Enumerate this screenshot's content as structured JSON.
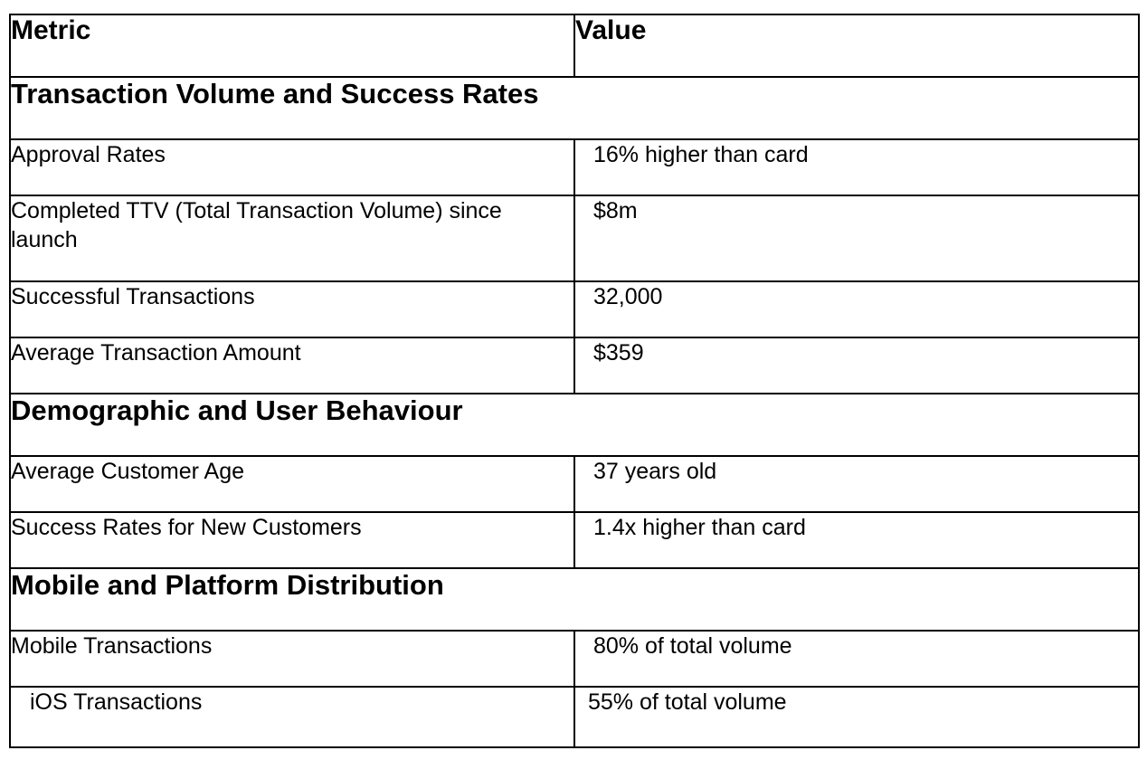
{
  "table": {
    "headers": {
      "metric": "Metric",
      "value": "Value"
    },
    "sections": [
      {
        "title": "Transaction Volume and Success Rates",
        "rows": [
          {
            "metric": "Approval Rates",
            "value": "16% higher than card"
          },
          {
            "metric": "Completed TTV (Total Transaction Volume) since launch",
            "value": "$8m"
          },
          {
            "metric": "Successful Transactions",
            "value": "32,000"
          },
          {
            "metric": "Average Transaction Amount",
            "value": "$359"
          }
        ]
      },
      {
        "title": "Demographic and User Behaviour",
        "rows": [
          {
            "metric": "Average Customer Age",
            "value": "37 years old"
          },
          {
            "metric": "Success Rates for New Customers",
            "value": "1.4x higher than card"
          }
        ]
      },
      {
        "title": "Mobile and Platform Distribution",
        "rows": [
          {
            "metric": "Mobile Transactions",
            "value": "80% of total volume"
          },
          {
            "metric": "iOS Transactions",
            "value": "55% of total volume"
          }
        ]
      }
    ]
  }
}
